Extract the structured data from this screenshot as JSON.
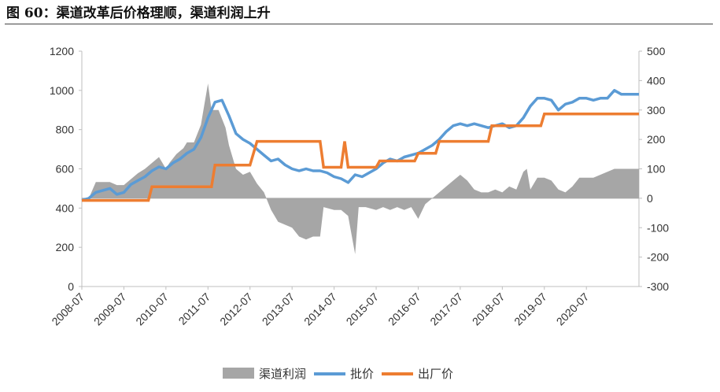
{
  "figure": {
    "title": "图 60：渠道改革后价格理顺，渠道利润上升"
  },
  "chart_data": {
    "type": "line",
    "title": "图 60：渠道改革后价格理顺，渠道利润上升",
    "x_tick_labels": [
      "2008-07",
      "2009-07",
      "2010-07",
      "2011-07",
      "2012-07",
      "2013-07",
      "2014-07",
      "2015-07",
      "2016-07",
      "2017-07",
      "2018-07",
      "2019-07",
      "2020-07"
    ],
    "x_range": [
      "2008-07",
      "2021-10"
    ],
    "y_left": {
      "ticks": [
        0,
        200,
        400,
        600,
        800,
        1000,
        1200
      ],
      "ylim": [
        0,
        1200
      ]
    },
    "y_right": {
      "ticks": [
        -300,
        -200,
        -100,
        0,
        100,
        200,
        300,
        400,
        500
      ],
      "ylim": [
        -300,
        500
      ]
    },
    "legend": {
      "position": "bottom"
    },
    "series": [
      {
        "name": "渠道利润",
        "kind": "area",
        "axis": "right",
        "color": "#a6a6a6",
        "points": [
          [
            "2008-07",
            0
          ],
          [
            "2008-09",
            0
          ],
          [
            "2008-11",
            55
          ],
          [
            "2009-01",
            55
          ],
          [
            "2009-03",
            55
          ],
          [
            "2009-05",
            45
          ],
          [
            "2009-07",
            45
          ],
          [
            "2009-09",
            65
          ],
          [
            "2009-11",
            85
          ],
          [
            "2010-01",
            100
          ],
          [
            "2010-03",
            120
          ],
          [
            "2010-05",
            140
          ],
          [
            "2010-07",
            100
          ],
          [
            "2010-08",
            120
          ],
          [
            "2010-10",
            150
          ],
          [
            "2010-12",
            170
          ],
          [
            "2011-01",
            190
          ],
          [
            "2011-03",
            190
          ],
          [
            "2011-05",
            250
          ],
          [
            "2011-06",
            320
          ],
          [
            "2011-07",
            390
          ],
          [
            "2011-08",
            300
          ],
          [
            "2011-10",
            300
          ],
          [
            "2011-12",
            240
          ],
          [
            "2012-01",
            180
          ],
          [
            "2012-03",
            100
          ],
          [
            "2012-05",
            80
          ],
          [
            "2012-07",
            90
          ],
          [
            "2012-09",
            50
          ],
          [
            "2012-11",
            20
          ],
          [
            "2013-01",
            -40
          ],
          [
            "2013-03",
            -80
          ],
          [
            "2013-05",
            -90
          ],
          [
            "2013-07",
            -100
          ],
          [
            "2013-09",
            -130
          ],
          [
            "2013-11",
            -140
          ],
          [
            "2014-01",
            -130
          ],
          [
            "2014-03",
            -130
          ],
          [
            "2014-04",
            -30
          ],
          [
            "2014-07",
            -40
          ],
          [
            "2014-09",
            -40
          ],
          [
            "2014-11",
            -60
          ],
          [
            "2015-01",
            -190
          ],
          [
            "2015-02",
            -30
          ],
          [
            "2015-04",
            -30
          ],
          [
            "2015-07",
            -40
          ],
          [
            "2015-09",
            -30
          ],
          [
            "2015-11",
            -40
          ],
          [
            "2016-01",
            -30
          ],
          [
            "2016-03",
            -40
          ],
          [
            "2016-05",
            -30
          ],
          [
            "2016-07",
            -70
          ],
          [
            "2016-09",
            -20
          ],
          [
            "2016-11",
            0
          ],
          [
            "2017-01",
            20
          ],
          [
            "2017-03",
            40
          ],
          [
            "2017-05",
            60
          ],
          [
            "2017-07",
            80
          ],
          [
            "2017-09",
            60
          ],
          [
            "2017-11",
            30
          ],
          [
            "2018-01",
            20
          ],
          [
            "2018-03",
            20
          ],
          [
            "2018-05",
            30
          ],
          [
            "2018-07",
            20
          ],
          [
            "2018-09",
            40
          ],
          [
            "2018-11",
            30
          ],
          [
            "2019-01",
            90
          ],
          [
            "2019-02",
            100
          ],
          [
            "2019-03",
            30
          ],
          [
            "2019-05",
            70
          ],
          [
            "2019-07",
            70
          ],
          [
            "2019-09",
            60
          ],
          [
            "2019-11",
            30
          ],
          [
            "2020-01",
            20
          ],
          [
            "2020-03",
            40
          ],
          [
            "2020-05",
            70
          ],
          [
            "2020-07",
            70
          ],
          [
            "2020-09",
            70
          ],
          [
            "2020-11",
            80
          ],
          [
            "2021-01",
            90
          ],
          [
            "2021-03",
            100
          ],
          [
            "2021-05",
            100
          ],
          [
            "2021-07",
            100
          ],
          [
            "2021-10",
            100
          ]
        ]
      },
      {
        "name": "批价",
        "kind": "line",
        "axis": "left",
        "color": "#5b9bd5",
        "points": [
          [
            "2008-07",
            440
          ],
          [
            "2008-09",
            450
          ],
          [
            "2008-11",
            480
          ],
          [
            "2009-01",
            490
          ],
          [
            "2009-03",
            500
          ],
          [
            "2009-05",
            470
          ],
          [
            "2009-07",
            480
          ],
          [
            "2009-09",
            520
          ],
          [
            "2009-11",
            540
          ],
          [
            "2010-01",
            560
          ],
          [
            "2010-03",
            590
          ],
          [
            "2010-05",
            610
          ],
          [
            "2010-07",
            600
          ],
          [
            "2010-09",
            630
          ],
          [
            "2010-11",
            650
          ],
          [
            "2011-01",
            680
          ],
          [
            "2011-03",
            700
          ],
          [
            "2011-05",
            760
          ],
          [
            "2011-07",
            860
          ],
          [
            "2011-09",
            940
          ],
          [
            "2011-11",
            950
          ],
          [
            "2012-01",
            870
          ],
          [
            "2012-03",
            780
          ],
          [
            "2012-05",
            750
          ],
          [
            "2012-07",
            730
          ],
          [
            "2012-09",
            700
          ],
          [
            "2012-11",
            670
          ],
          [
            "2013-01",
            640
          ],
          [
            "2013-03",
            650
          ],
          [
            "2013-05",
            620
          ],
          [
            "2013-07",
            600
          ],
          [
            "2013-09",
            590
          ],
          [
            "2013-11",
            600
          ],
          [
            "2014-01",
            590
          ],
          [
            "2014-03",
            590
          ],
          [
            "2014-05",
            580
          ],
          [
            "2014-07",
            560
          ],
          [
            "2014-09",
            550
          ],
          [
            "2014-11",
            530
          ],
          [
            "2015-01",
            570
          ],
          [
            "2015-03",
            560
          ],
          [
            "2015-05",
            580
          ],
          [
            "2015-07",
            600
          ],
          [
            "2015-09",
            630
          ],
          [
            "2015-11",
            650
          ],
          [
            "2016-01",
            640
          ],
          [
            "2016-03",
            660
          ],
          [
            "2016-05",
            670
          ],
          [
            "2016-07",
            680
          ],
          [
            "2016-09",
            700
          ],
          [
            "2016-11",
            720
          ],
          [
            "2017-01",
            750
          ],
          [
            "2017-03",
            790
          ],
          [
            "2017-05",
            820
          ],
          [
            "2017-07",
            830
          ],
          [
            "2017-09",
            820
          ],
          [
            "2017-11",
            830
          ],
          [
            "2018-01",
            820
          ],
          [
            "2018-03",
            810
          ],
          [
            "2018-05",
            820
          ],
          [
            "2018-07",
            830
          ],
          [
            "2018-09",
            810
          ],
          [
            "2018-11",
            820
          ],
          [
            "2019-01",
            860
          ],
          [
            "2019-03",
            920
          ],
          [
            "2019-05",
            960
          ],
          [
            "2019-07",
            960
          ],
          [
            "2019-09",
            950
          ],
          [
            "2019-11",
            900
          ],
          [
            "2020-01",
            930
          ],
          [
            "2020-03",
            940
          ],
          [
            "2020-05",
            960
          ],
          [
            "2020-07",
            960
          ],
          [
            "2020-09",
            950
          ],
          [
            "2020-11",
            960
          ],
          [
            "2021-01",
            960
          ],
          [
            "2021-03",
            1000
          ],
          [
            "2021-05",
            980
          ],
          [
            "2021-10",
            980
          ]
        ]
      },
      {
        "name": "出厂价",
        "kind": "step",
        "axis": "left",
        "color": "#ed7d31",
        "points": [
          [
            "2008-07",
            439
          ],
          [
            "2010-02",
            439
          ],
          [
            "2010-03",
            509
          ],
          [
            "2011-08",
            509
          ],
          [
            "2011-09",
            619
          ],
          [
            "2012-07",
            619
          ],
          [
            "2012-09",
            740
          ],
          [
            "2014-03",
            740
          ],
          [
            "2014-04",
            608
          ],
          [
            "2014-09",
            608
          ],
          [
            "2014-10",
            740
          ],
          [
            "2014-11",
            608
          ],
          [
            "2015-07",
            608
          ],
          [
            "2015-08",
            640
          ],
          [
            "2016-06",
            640
          ],
          [
            "2016-07",
            679
          ],
          [
            "2016-12",
            679
          ],
          [
            "2017-01",
            740
          ],
          [
            "2018-03",
            740
          ],
          [
            "2018-04",
            820
          ],
          [
            "2019-06",
            820
          ],
          [
            "2019-07",
            880
          ],
          [
            "2021-10",
            880
          ]
        ]
      }
    ]
  }
}
